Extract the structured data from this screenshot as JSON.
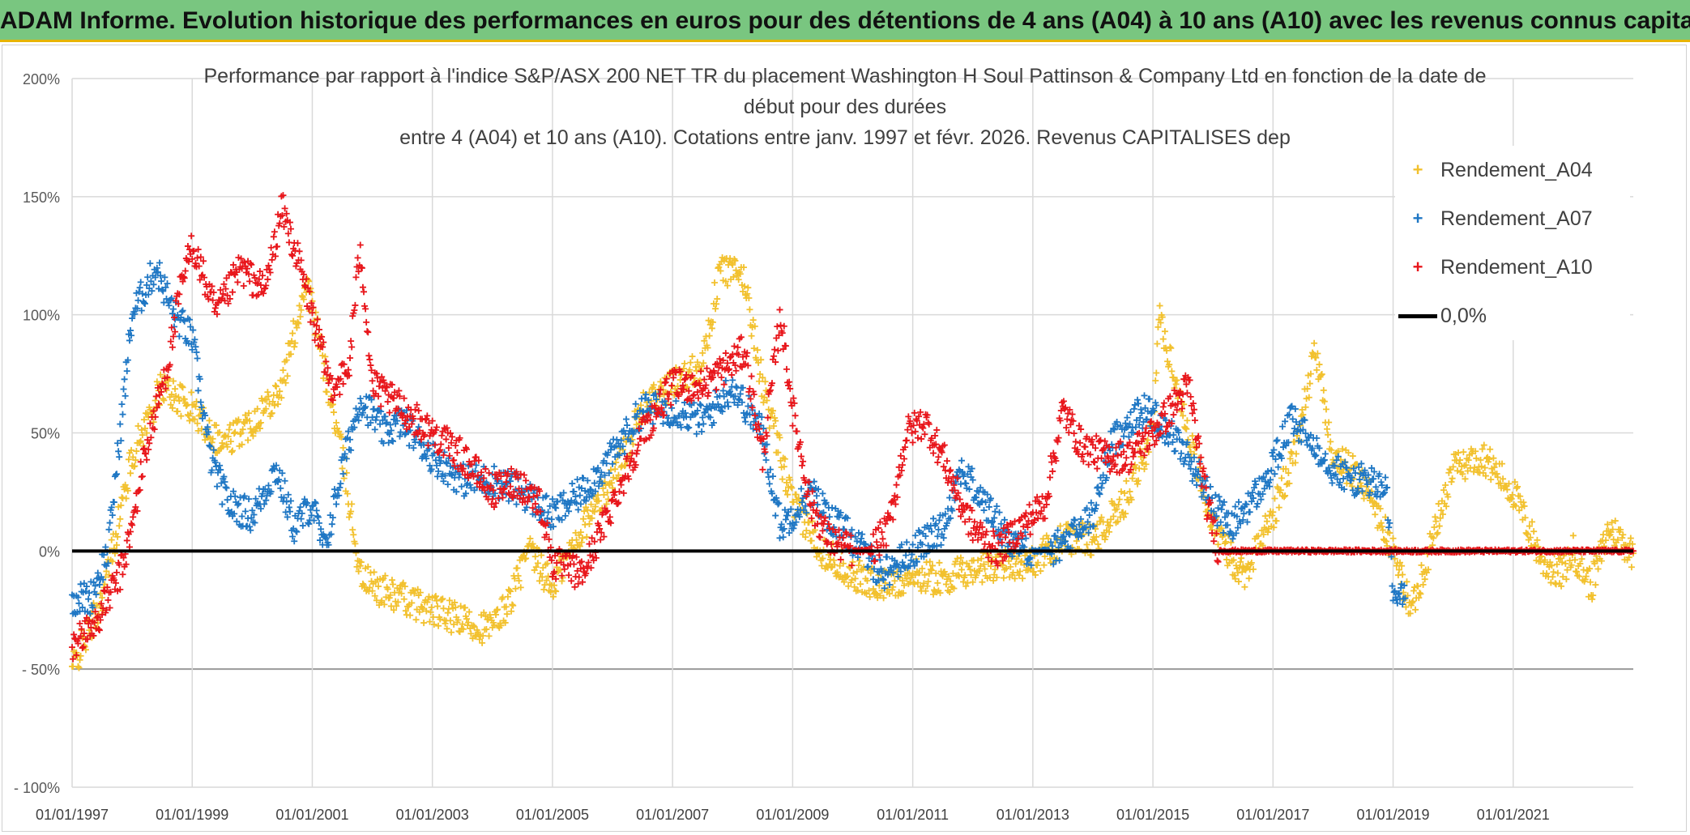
{
  "banner": {
    "title": "ADAM Informe. Evolution historique des performances en euros pour des détentions de 4 ans (A04) à 10 ans (A10) avec les revenus connus capitalisés",
    "background": "#79c680",
    "border_color": "#e7b400"
  },
  "chart_data": {
    "type": "scatter",
    "title_lines": [
      "Performance par rapport à l'indice S&P/ASX 200 NET TR  du placement Washington H Soul Pattinson & Company Ltd en fonction de la date de",
      "début pour des durées",
      "entre 4 (A04) et 10 ans (A10). Cotations entre janv. 1997 et févr. 2026. Revenus CAPITALISES dep"
    ],
    "xlabel": "",
    "ylabel": "",
    "x_range": [
      1997.0,
      2023.0
    ],
    "ylim": [
      -100,
      200
    ],
    "y_ticks": [
      -100,
      -50,
      0,
      50,
      100,
      150,
      200
    ],
    "y_tick_labels": [
      "- 100%",
      "- 50%",
      "0%",
      "50%",
      "100%",
      "150%",
      "200%"
    ],
    "x_ticks": [
      1997,
      1999,
      2001,
      2003,
      2005,
      2007,
      2009,
      2011,
      2013,
      2015,
      2017,
      2019,
      2021
    ],
    "x_tick_labels": [
      "01/01/1997",
      "01/01/1999",
      "01/01/2001",
      "01/01/2003",
      "01/01/2005",
      "01/01/2007",
      "01/01/2009",
      "01/01/2011",
      "01/01/2013",
      "01/01/2015",
      "01/01/2017",
      "01/01/2019",
      "01/01/2021"
    ],
    "grid": true,
    "legend_position": "top-right",
    "marker": "+",
    "series": [
      {
        "name": "Rendement_A04",
        "color": "#f2c12e",
        "x": [
          1997.0,
          1997.5,
          1998.0,
          1998.5,
          1999.0,
          1999.5,
          2000.0,
          2000.5,
          2000.9,
          2001.1,
          2001.5,
          2001.8,
          2002.0,
          2002.5,
          2003.0,
          2003.5,
          2004.0,
          2004.3,
          2004.6,
          2005.0,
          2005.5,
          2006.0,
          2006.5,
          2007.0,
          2007.5,
          2007.8,
          2008.2,
          2008.5,
          2009.0,
          2009.5,
          2010.0,
          2010.5,
          2011.0,
          2011.5,
          2012.0,
          2012.5,
          2013.0,
          2013.5,
          2014.0,
          2014.5,
          2015.0,
          2015.1,
          2015.5,
          2016.0,
          2016.5,
          2017.0,
          2017.4,
          2017.7,
          2018.0,
          2018.5,
          2019.0,
          2019.3,
          2019.6,
          2020.0,
          2020.5,
          2021.0,
          2021.5,
          2021.8,
          2022.0,
          2022.3,
          2022.6,
          2023.0
        ],
        "y": [
          -50,
          -20,
          40,
          70,
          60,
          45,
          55,
          70,
          115,
          90,
          40,
          -10,
          -15,
          -20,
          -25,
          -30,
          -33,
          -20,
          0,
          -15,
          10,
          30,
          60,
          70,
          80,
          120,
          115,
          70,
          20,
          0,
          -10,
          -15,
          -10,
          -12,
          -8,
          -5,
          -5,
          5,
          5,
          20,
          50,
          100,
          60,
          10,
          -10,
          15,
          45,
          85,
          40,
          30,
          0,
          -25,
          0,
          35,
          40,
          25,
          -5,
          -10,
          0,
          -15,
          10,
          -1
        ]
      },
      {
        "name": "Rendement_A07",
        "color": "#1f77c4",
        "x": [
          1997.0,
          1997.3,
          1997.6,
          1998.0,
          1998.4,
          1998.7,
          1999.0,
          1999.3,
          1999.6,
          2000.0,
          2000.4,
          2000.7,
          2001.0,
          2001.2,
          2001.5,
          2001.8,
          2002.2,
          2002.5,
          2003.0,
          2003.5,
          2004.0,
          2004.5,
          2005.0,
          2005.5,
          2006.0,
          2006.5,
          2007.0,
          2007.5,
          2008.0,
          2008.5,
          2008.8,
          2009.3,
          2009.6,
          2010.0,
          2010.5,
          2011.0,
          2011.5,
          2011.8,
          2012.2,
          2012.6,
          2013.0,
          2013.3,
          2013.6,
          2014.0,
          2014.3,
          2014.6,
          2014.9,
          2015.3,
          2015.7,
          2016.0,
          2016.3,
          2016.6,
          2016.9,
          2017.3,
          2017.7,
          2018.0,
          2018.3,
          2018.6,
          2018.9,
          2019.0,
          2019.2
        ],
        "y": [
          -20,
          -20,
          0,
          100,
          120,
          100,
          90,
          40,
          20,
          15,
          35,
          10,
          20,
          0,
          35,
          65,
          50,
          55,
          40,
          30,
          30,
          25,
          15,
          25,
          40,
          60,
          60,
          55,
          70,
          50,
          10,
          25,
          15,
          5,
          -10,
          0,
          10,
          35,
          20,
          5,
          0,
          0,
          5,
          15,
          45,
          55,
          60,
          50,
          35,
          20,
          10,
          20,
          30,
          55,
          45,
          35,
          30,
          30,
          25,
          -20,
          -20
        ]
      },
      {
        "name": "Rendement_A10",
        "color": "#e8161b",
        "x": [
          1997.0,
          1997.4,
          1997.8,
          1998.0,
          1998.2,
          1998.4,
          1998.6,
          1998.8,
          1999.0,
          1999.4,
          1999.8,
          2000.2,
          2000.5,
          2000.8,
          2001.0,
          2001.3,
          2001.6,
          2001.8,
          2002.0,
          2002.5,
          2003.0,
          2003.5,
          2004.0,
          2004.4,
          2004.8,
          2005.0,
          2005.5,
          2006.0,
          2006.5,
          2007.0,
          2007.5,
          2008.0,
          2008.2,
          2008.5,
          2008.8,
          2009.0,
          2009.3,
          2009.6,
          2010.0,
          2010.3,
          2010.6,
          2010.9,
          2011.2,
          2011.5,
          2011.8,
          2012.0,
          2012.4,
          2012.8,
          2013.2,
          2013.5,
          2013.8,
          2014.2,
          2014.6,
          2015.0,
          2015.3,
          2015.6,
          2015.9,
          2016.1,
          2016.5,
          2017.0,
          2018.0,
          2019.0,
          2020.0,
          2021.0,
          2022.0,
          2023.0
        ],
        "y": [
          -40,
          -30,
          -10,
          10,
          40,
          60,
          80,
          110,
          130,
          100,
          120,
          110,
          145,
          120,
          100,
          70,
          75,
          130,
          70,
          60,
          50,
          40,
          25,
          30,
          20,
          -5,
          -10,
          20,
          50,
          70,
          70,
          80,
          85,
          40,
          100,
          60,
          20,
          5,
          0,
          0,
          10,
          50,
          55,
          40,
          20,
          10,
          0,
          10,
          20,
          60,
          45,
          40,
          40,
          50,
          60,
          70,
          20,
          0,
          0,
          0,
          0,
          0,
          0,
          0,
          0,
          0
        ]
      },
      {
        "name": "0,0%",
        "color": "#000000",
        "x": [
          1997.0,
          2023.0
        ],
        "y": [
          0,
          0
        ]
      }
    ]
  }
}
